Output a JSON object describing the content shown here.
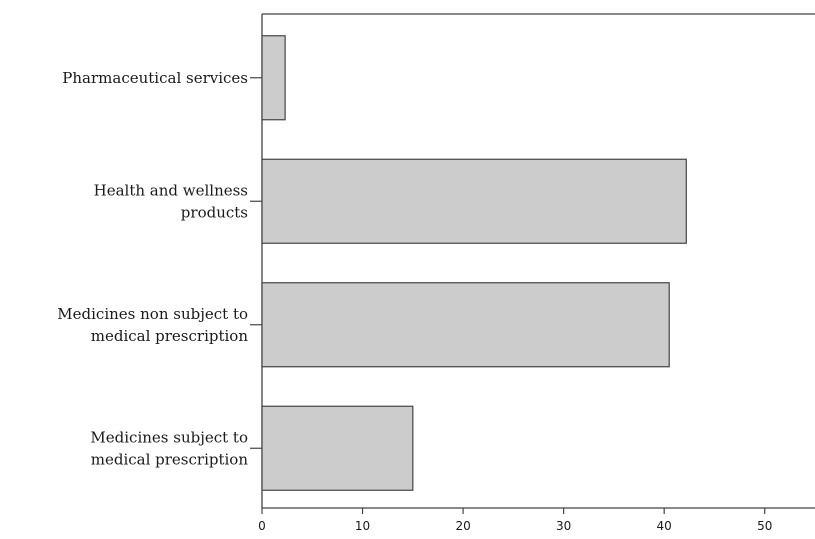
{
  "chart_data": {
    "type": "bar",
    "orientation": "horizontal",
    "categories": [
      [
        "Pharmaceutical services"
      ],
      [
        "Health and wellness",
        "products"
      ],
      [
        "Medicines non subject to",
        "medical prescription"
      ],
      [
        "Medicines subject to",
        "medical prescription"
      ]
    ],
    "values": [
      2.3,
      42.2,
      40.5,
      15.0
    ],
    "xlim": [
      0,
      55
    ],
    "x_ticks": [
      0,
      10,
      20,
      30,
      40,
      50
    ],
    "title": "",
    "xlabel": "",
    "ylabel": "",
    "grid": false,
    "colors": {
      "bar_fill": "#cccccc",
      "bar_stroke": "#444444",
      "axis": "#444444"
    }
  }
}
